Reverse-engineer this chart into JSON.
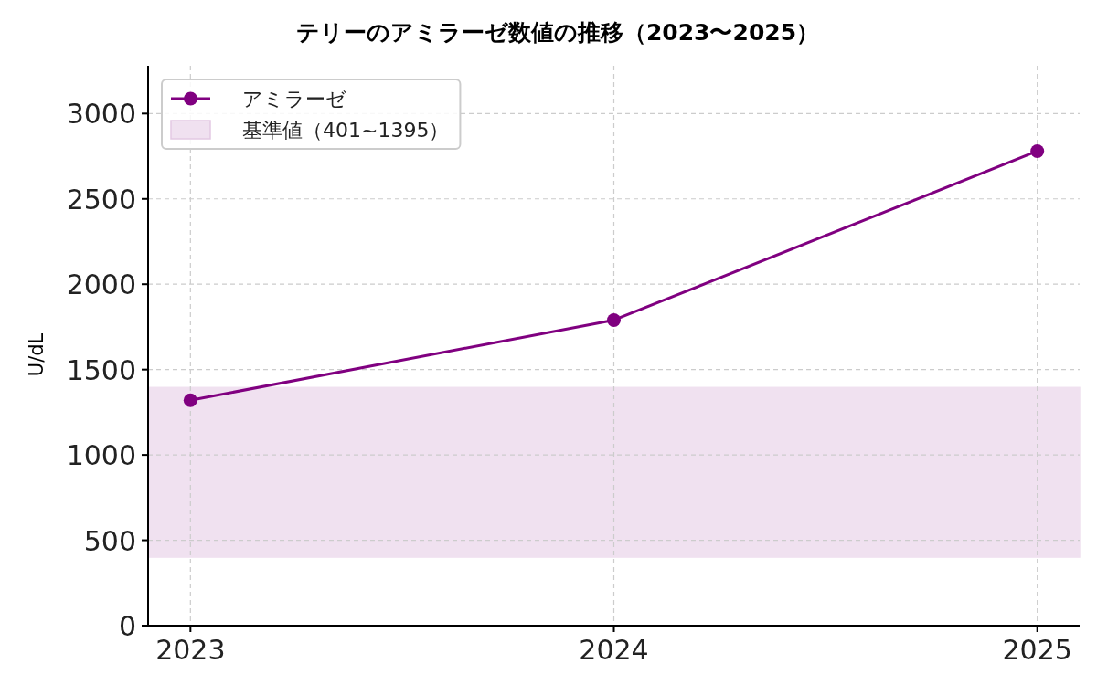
{
  "chart_data": {
    "type": "line",
    "title": "テリーのアミラーゼ数値の推移（2023〜2025）",
    "ylabel": "U/dL",
    "x": [
      2023,
      2024,
      2025
    ],
    "xlim": [
      2022.9,
      2025.1
    ],
    "xticks": [
      2023,
      2024,
      2025
    ],
    "ylim": [
      0,
      3280
    ],
    "yticks": [
      0,
      500,
      1000,
      1500,
      2000,
      2500,
      3000
    ],
    "series": [
      {
        "name": "アミラーゼ",
        "color": "#800080",
        "values": [
          1320,
          1790,
          2780
        ]
      }
    ],
    "bands": [
      {
        "axis": "y",
        "from": 401,
        "to": 1395,
        "label": "基準値（401~1395）",
        "color": "#f0e1f0"
      }
    ],
    "grid": true,
    "legend": "top left",
    "marker": "circle",
    "line_style": "solid"
  }
}
